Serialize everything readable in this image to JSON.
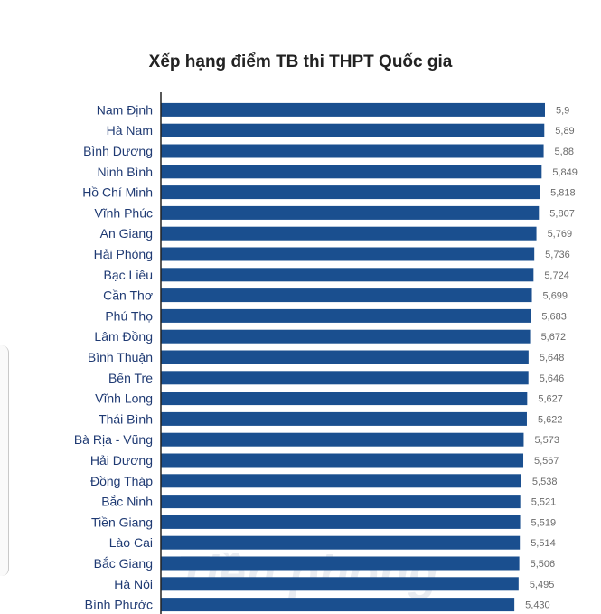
{
  "chart_data": {
    "type": "bar",
    "orientation": "horizontal",
    "title": "Xếp hạng điểm TB thi THPT Quốc gia",
    "categories": [
      "Nam Định",
      "Hà Nam",
      "Bình Dương",
      "Ninh Bình",
      "Hồ Chí Minh",
      "Vĩnh Phúc",
      "An Giang",
      "Hải Phòng",
      "Bạc Liêu",
      "Cần Thơ",
      "Phú Thọ",
      "Lâm Đồng",
      "Bình Thuận",
      "Bến Tre",
      "Vĩnh Long",
      "Thái Bình",
      "Bà Rịa - Vũng",
      "Hải Dương",
      "Đồng Tháp",
      "Bắc Ninh",
      "Tiền Giang",
      "Lào Cai",
      "Bắc Giang",
      "Hà Nội",
      "Bình Phước"
    ],
    "values": [
      5.9,
      5.89,
      5.88,
      5.849,
      5.818,
      5.807,
      5.769,
      5.736,
      5.724,
      5.699,
      5.683,
      5.672,
      5.648,
      5.646,
      5.627,
      5.622,
      5.573,
      5.567,
      5.538,
      5.521,
      5.519,
      5.514,
      5.506,
      5.495,
      5.43
    ],
    "value_labels": [
      "5,9",
      "5,89",
      "5,88",
      "5,849",
      "5,818",
      "5,807",
      "5,769",
      "5,736",
      "5,724",
      "5,699",
      "5,683",
      "5,672",
      "5,648",
      "5,646",
      "5,627",
      "5,622",
      "5,573",
      "5,567",
      "5,538",
      "5,521",
      "5,519",
      "5,514",
      "5,506",
      "5,495",
      "5,430"
    ],
    "bar_color": "#1a4f8f",
    "grid": false,
    "legend": "none"
  },
  "watermark": "Tiền phong"
}
